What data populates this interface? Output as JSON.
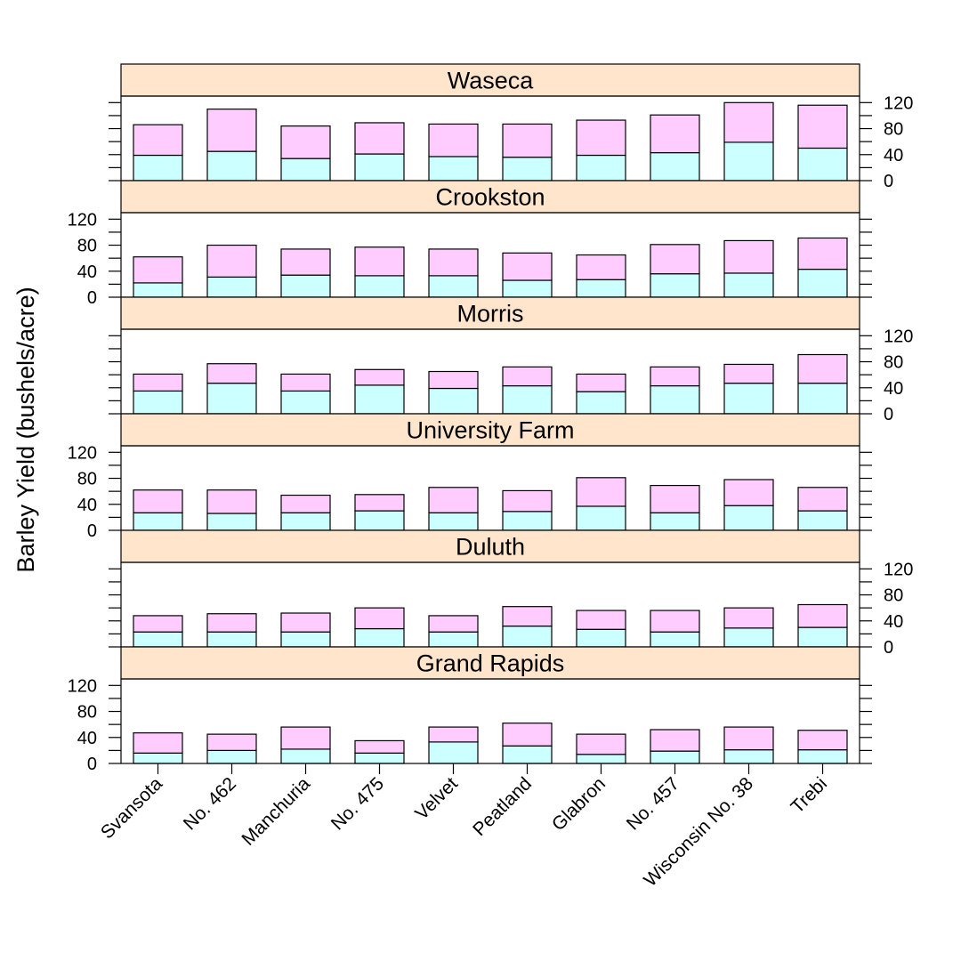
{
  "chart_data": {
    "type": "bar",
    "stacked": true,
    "ylabel": "Barley Yield (bushels/acre)",
    "ylim": [
      0,
      130
    ],
    "yticks": [
      0,
      40,
      80,
      120
    ],
    "categories": [
      "Svansota",
      "No. 462",
      "Manchuria",
      "No. 475",
      "Velvet",
      "Peatland",
      "Glabron",
      "No. 457",
      "Wisconsin No. 38",
      "Trebi"
    ],
    "stack_colors": [
      "#ccffff",
      "#ffccff"
    ],
    "strip_color": "#ffe5cc",
    "panels": [
      {
        "title": "Waseca",
        "series": [
          {
            "values": [
              39,
              45,
              34,
              41,
              37,
              36,
              39,
              43,
              59,
              50
            ]
          },
          {
            "values": [
              47,
              65,
              50,
              48,
              50,
              51,
              54,
              58,
              61,
              66
            ]
          }
        ]
      },
      {
        "title": "Crookston",
        "series": [
          {
            "values": [
              22,
              31,
              34,
              33,
              33,
              26,
              27,
              36,
              37,
              43
            ]
          },
          {
            "values": [
              40,
              49,
              40,
              44,
              41,
              42,
              38,
              45,
              50,
              48
            ]
          }
        ]
      },
      {
        "title": "Morris",
        "series": [
          {
            "values": [
              35,
              47,
              35,
              44,
              39,
              43,
              34,
              43,
              47,
              47
            ]
          },
          {
            "values": [
              26,
              30,
              26,
              24,
              26,
              29,
              27,
              29,
              29,
              44
            ]
          }
        ]
      },
      {
        "title": "University Farm",
        "series": [
          {
            "values": [
              27,
              26,
              27,
              30,
              27,
              29,
              37,
              27,
              38,
              30
            ]
          },
          {
            "values": [
              35,
              36,
              27,
              25,
              39,
              32,
              44,
              42,
              40,
              36
            ]
          }
        ]
      },
      {
        "title": "Duluth",
        "series": [
          {
            "values": [
              23,
              23,
              23,
              28,
              23,
              32,
              27,
              23,
              29,
              30
            ]
          },
          {
            "values": [
              25,
              28,
              29,
              32,
              25,
              30,
              29,
              33,
              31,
              35
            ]
          }
        ]
      },
      {
        "title": "Grand Rapids",
        "series": [
          {
            "values": [
              16,
              20,
              22,
              16,
              33,
              27,
              14,
              19,
              21,
              21
            ]
          },
          {
            "values": [
              31,
              25,
              34,
              19,
              23,
              35,
              31,
              33,
              35,
              30
            ]
          }
        ]
      }
    ]
  }
}
